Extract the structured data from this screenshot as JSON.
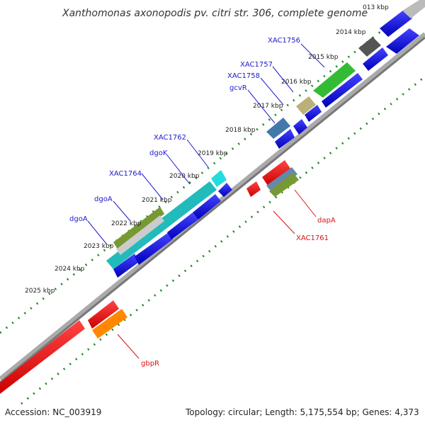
{
  "title": "Xanthomonas axonopodis pv. citri str. 306, complete genome",
  "footer": {
    "accession": "Accession: NC_003919",
    "summary": "Topology: circular; Length: 5,175,554 bp; Genes: 4,373"
  },
  "ticks": [
    "013 kbp",
    "2014 kbp",
    "2015 kbp",
    "2016 kbp",
    "2017 kbp",
    "2018 kbp",
    "2019 kbp",
    "2020 kbp",
    "2021 kbp",
    "2022 kbp",
    "2023 kbp",
    "2024 kbp",
    "2025 kbp"
  ],
  "gene_labels_forward": [
    "XAC1756",
    "XAC1757",
    "XAC1758",
    "gcvR",
    "XAC1762",
    "dgoK",
    "XAC1764",
    "dgoA",
    "dgoA"
  ],
  "gene_labels_reverse": [
    "dapA",
    "XAC1761",
    "gbpR"
  ],
  "colors": {
    "forward": "#1a1acc",
    "reverse": "#ee1111",
    "backbone": "#888888",
    "tick": "#228822"
  }
}
